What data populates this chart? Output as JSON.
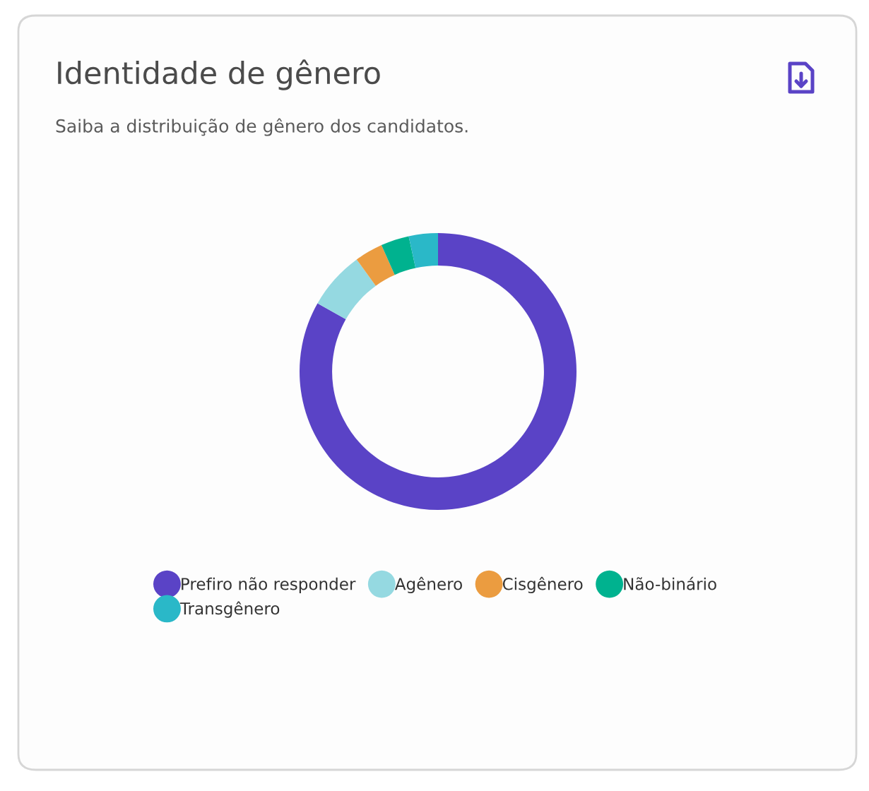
{
  "chart_data": {
    "type": "donut",
    "title": "Identidade de gênero",
    "subtitle": "Saiba a distribuição de gênero dos candidatos.",
    "categories": [
      "Prefiro não responder",
      "Agênero",
      "Cisgênero",
      "Não-binário",
      "Transgênero"
    ],
    "values": [
      83.2,
      6.8,
      3.3,
      3.3,
      3.4
    ],
    "colors": [
      "#5a43c6",
      "#95d9e1",
      "#eb9c40",
      "#00b28f",
      "#2ab8c8"
    ],
    "legend": "bottom"
  }
}
